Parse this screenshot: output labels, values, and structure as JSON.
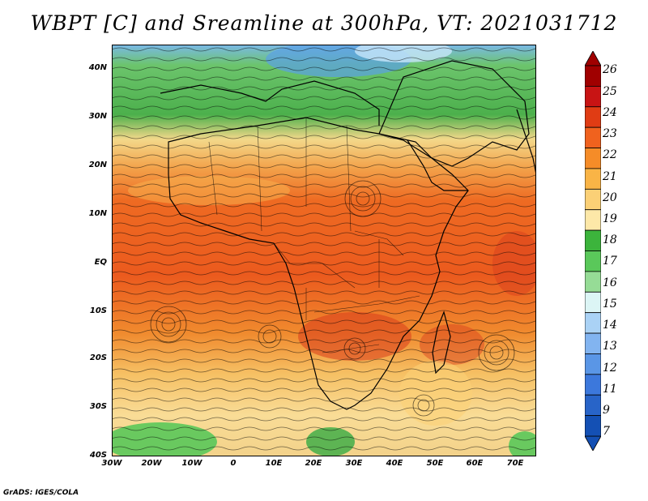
{
  "title": "WBPT [C] and Sreamline at 300hPa, VT: 2021031712",
  "credit": "GrADS: IGES/COLA",
  "lat_labels": [
    "40N",
    "30N",
    "20N",
    "10N",
    "EQ",
    "10S",
    "20S",
    "30S",
    "40S"
  ],
  "lon_labels": [
    "30W",
    "20W",
    "10W",
    "0",
    "10E",
    "20E",
    "30E",
    "40E",
    "50E",
    "60E",
    "70E"
  ],
  "colorbar": {
    "labels": [
      "26",
      "25",
      "24",
      "23",
      "22",
      "21",
      "20",
      "19",
      "18",
      "17",
      "16",
      "15",
      "14",
      "13",
      "12",
      "11",
      "9",
      "7"
    ],
    "colors": [
      "#a00000",
      "#c81414",
      "#e03c14",
      "#f0621e",
      "#f58c28",
      "#f9b446",
      "#fbd076",
      "#fde8a8",
      "#3cb43c",
      "#5ac85a",
      "#96dc96",
      "#dcf5f5",
      "#aad2f5",
      "#82b4f0",
      "#5a96e6",
      "#3c78dc",
      "#2864c8",
      "#1450b4"
    ]
  }
}
